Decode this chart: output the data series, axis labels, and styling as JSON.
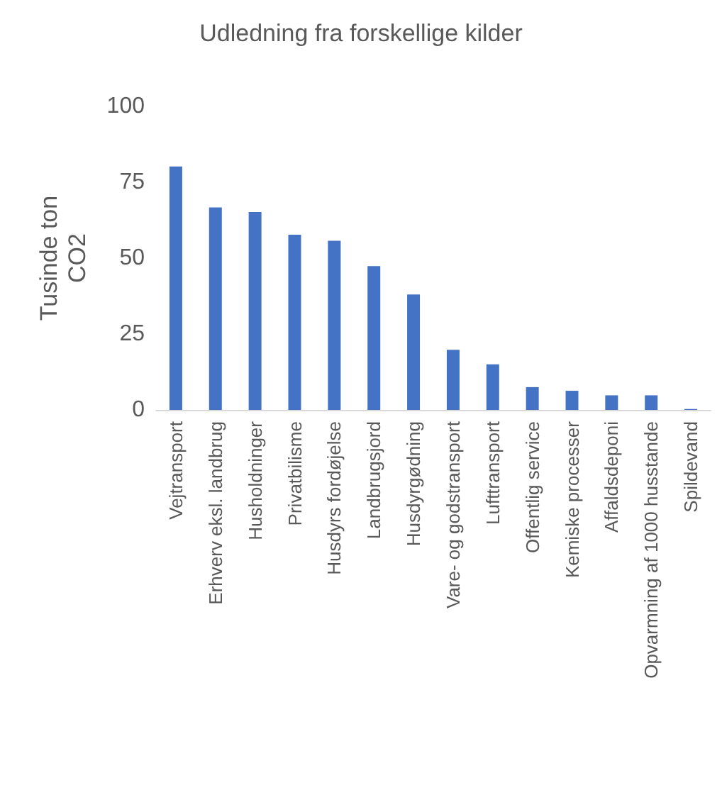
{
  "chart_data": {
    "type": "bar",
    "title": "Udledning fra forskellige kilder",
    "ylabel": "Tusinde ton CO2",
    "categories": [
      "Vejtransport",
      "Erhverv eksl. landbrug",
      "Husholdninger",
      "Privatbilisme",
      "Husdyrs fordøjelse",
      "Landbrugsjord",
      "Husdyrgødning",
      "Vare- og godstransport",
      "Lufttransport",
      "Offentlig service",
      "Kemiske processer",
      "Affaldsdeponi",
      "Opvarmning af 1000 husstande",
      "Spildevand"
    ],
    "values": [
      80.2,
      66.7,
      65.2,
      57.7,
      55.7,
      47.4,
      38.0,
      19.8,
      15.0,
      7.5,
      6.3,
      4.8,
      4.8,
      0.3
    ],
    "color": "#4472c4",
    "ylim": [
      0,
      100
    ],
    "yticks": [
      0,
      25,
      50,
      75,
      100
    ],
    "grid": false
  }
}
